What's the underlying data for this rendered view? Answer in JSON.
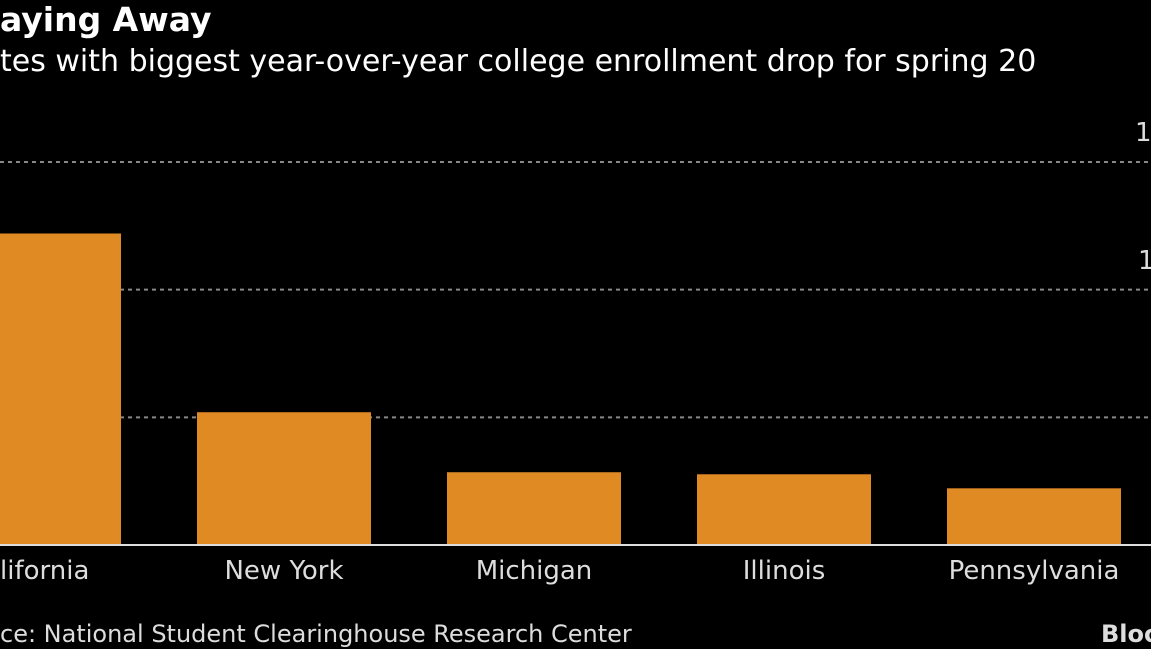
{
  "chart_data": {
    "type": "bar",
    "title": "aying Away",
    "subtitle": "tes with biggest year-over-year college enrollment drop for spring 20",
    "categories": [
      "lifornia",
      "New York",
      "Michigan",
      "Illinois",
      "Pennsylvania"
    ],
    "values": [
      122000,
      52000,
      28500,
      27700,
      22200
    ],
    "ylim": [
      0,
      150000
    ],
    "gridlines": [
      50000,
      100000,
      150000
    ],
    "ytick_labels": [
      "1",
      "1"
    ],
    "grid": true,
    "bar_color": "#e08a24",
    "source": "ce: National Student Clearinghouse Research Center",
    "logo": "Bloo"
  }
}
